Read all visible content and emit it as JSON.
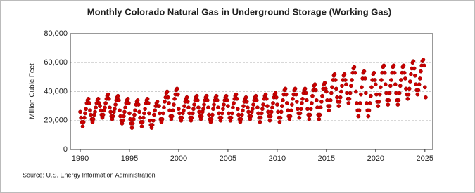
{
  "chart_data": {
    "type": "scatter",
    "title": "Monthly Colorado Natural Gas in Underground Storage (Working Gas)",
    "y_label": "Million Cubic Feet",
    "source": "Source: U.S. Energy Information Administration",
    "grid": true,
    "xlim": [
      1989,
      2025.8
    ],
    "xticks": [
      1990,
      1995,
      2000,
      2005,
      2010,
      2015,
      2020,
      2025
    ],
    "ylim": [
      0,
      80000
    ],
    "yticks": [
      0,
      {
        "value": 20000,
        "label": "20,000"
      },
      {
        "value": 40000,
        "label": "40,000"
      },
      {
        "value": 60000,
        "label": "60,000"
      },
      {
        "value": 80000,
        "label": "80,000"
      }
    ],
    "series": [
      {
        "name": "Working Gas",
        "color": "#cc0000",
        "x": [
          1990,
          1990.08,
          1990.17,
          1990.25,
          1990.33,
          1990.42,
          1990.5,
          1990.58,
          1990.67,
          1990.75,
          1990.83,
          1990.92,
          1991,
          1991.08,
          1991.17,
          1991.25,
          1991.33,
          1991.42,
          1991.5,
          1991.58,
          1991.67,
          1991.75,
          1991.83,
          1991.92,
          1992,
          1992.08,
          1992.17,
          1992.25,
          1992.33,
          1992.42,
          1992.5,
          1992.58,
          1992.67,
          1992.75,
          1992.83,
          1992.92,
          1993,
          1993.08,
          1993.17,
          1993.25,
          1993.33,
          1993.42,
          1993.5,
          1993.58,
          1993.67,
          1993.75,
          1993.83,
          1993.92,
          1994,
          1994.08,
          1994.17,
          1994.25,
          1994.33,
          1994.42,
          1994.5,
          1994.58,
          1994.67,
          1994.75,
          1994.83,
          1994.92,
          1995,
          1995.08,
          1995.17,
          1995.25,
          1995.33,
          1995.42,
          1995.5,
          1995.58,
          1995.67,
          1995.75,
          1995.83,
          1995.92,
          1996,
          1996.08,
          1996.17,
          1996.25,
          1996.33,
          1996.42,
          1996.5,
          1996.58,
          1996.67,
          1996.75,
          1996.83,
          1996.92,
          1997,
          1997.08,
          1997.17,
          1997.25,
          1997.33,
          1997.42,
          1997.5,
          1997.58,
          1997.67,
          1997.75,
          1997.83,
          1997.92,
          1998,
          1998.08,
          1998.17,
          1998.25,
          1998.33,
          1998.42,
          1998.5,
          1998.58,
          1998.67,
          1998.75,
          1998.83,
          1998.92,
          1999,
          1999.08,
          1999.17,
          1999.25,
          1999.33,
          1999.42,
          1999.5,
          1999.58,
          1999.67,
          1999.75,
          1999.83,
          1999.92,
          2000,
          2000.08,
          2000.17,
          2000.25,
          2000.33,
          2000.42,
          2000.5,
          2000.58,
          2000.67,
          2000.75,
          2000.83,
          2000.92,
          2001,
          2001.08,
          2001.17,
          2001.25,
          2001.33,
          2001.42,
          2001.5,
          2001.58,
          2001.67,
          2001.75,
          2001.83,
          2001.92,
          2002,
          2002.08,
          2002.17,
          2002.25,
          2002.33,
          2002.42,
          2002.5,
          2002.58,
          2002.67,
          2002.75,
          2002.83,
          2002.92,
          2003,
          2003.08,
          2003.17,
          2003.25,
          2003.33,
          2003.42,
          2003.5,
          2003.58,
          2003.67,
          2003.75,
          2003.83,
          2003.92,
          2004,
          2004.08,
          2004.17,
          2004.25,
          2004.33,
          2004.42,
          2004.5,
          2004.58,
          2004.67,
          2004.75,
          2004.83,
          2004.92,
          2005,
          2005.08,
          2005.17,
          2005.25,
          2005.33,
          2005.42,
          2005.5,
          2005.58,
          2005.67,
          2005.75,
          2005.83,
          2005.92,
          2006,
          2006.08,
          2006.17,
          2006.25,
          2006.33,
          2006.42,
          2006.5,
          2006.58,
          2006.67,
          2006.75,
          2006.83,
          2006.92,
          2007,
          2007.08,
          2007.17,
          2007.25,
          2007.33,
          2007.42,
          2007.5,
          2007.58,
          2007.67,
          2007.75,
          2007.83,
          2007.92,
          2008,
          2008.08,
          2008.17,
          2008.25,
          2008.33,
          2008.42,
          2008.5,
          2008.58,
          2008.67,
          2008.75,
          2008.83,
          2008.92,
          2009,
          2009.08,
          2009.17,
          2009.25,
          2009.33,
          2009.42,
          2009.5,
          2009.58,
          2009.67,
          2009.75,
          2009.83,
          2009.92,
          2010,
          2010.08,
          2010.17,
          2010.25,
          2010.33,
          2010.42,
          2010.5,
          2010.58,
          2010.67,
          2010.75,
          2010.83,
          2010.92,
          2011,
          2011.08,
          2011.17,
          2011.25,
          2011.33,
          2011.42,
          2011.5,
          2011.58,
          2011.67,
          2011.75,
          2011.83,
          2011.92,
          2012,
          2012.08,
          2012.17,
          2012.25,
          2012.33,
          2012.42,
          2012.5,
          2012.58,
          2012.67,
          2012.75,
          2012.83,
          2012.92,
          2013,
          2013.08,
          2013.17,
          2013.25,
          2013.33,
          2013.42,
          2013.5,
          2013.58,
          2013.67,
          2013.75,
          2013.83,
          2013.92,
          2014,
          2014.08,
          2014.17,
          2014.25,
          2014.33,
          2014.42,
          2014.5,
          2014.58,
          2014.67,
          2014.75,
          2014.83,
          2014.92,
          2015,
          2015.08,
          2015.17,
          2015.25,
          2015.33,
          2015.42,
          2015.5,
          2015.58,
          2015.67,
          2015.75,
          2015.83,
          2015.92,
          2016,
          2016.08,
          2016.17,
          2016.25,
          2016.33,
          2016.42,
          2016.5,
          2016.58,
          2016.67,
          2016.75,
          2016.83,
          2016.92,
          2017,
          2017.08,
          2017.17,
          2017.25,
          2017.33,
          2017.42,
          2017.5,
          2017.58,
          2017.67,
          2017.75,
          2017.83,
          2017.92,
          2018,
          2018.08,
          2018.17,
          2018.25,
          2018.33,
          2018.42,
          2018.5,
          2018.58,
          2018.67,
          2018.75,
          2018.83,
          2018.92,
          2019,
          2019.08,
          2019.17,
          2019.25,
          2019.33,
          2019.42,
          2019.5,
          2019.58,
          2019.67,
          2019.75,
          2019.83,
          2019.92,
          2020,
          2020.08,
          2020.17,
          2020.25,
          2020.33,
          2020.42,
          2020.5,
          2020.58,
          2020.67,
          2020.75,
          2020.83,
          2020.92,
          2021,
          2021.08,
          2021.17,
          2021.25,
          2021.33,
          2021.42,
          2021.5,
          2021.58,
          2021.67,
          2021.75,
          2021.83,
          2021.92,
          2022,
          2022.08,
          2022.17,
          2022.25,
          2022.33,
          2022.42,
          2022.5,
          2022.58,
          2022.67,
          2022.75,
          2022.83,
          2022.92,
          2023,
          2023.08,
          2023.17,
          2023.25,
          2023.33,
          2023.42,
          2023.5,
          2023.58,
          2023.67,
          2023.75,
          2023.83,
          2023.92,
          2024,
          2024.08,
          2024.17,
          2024.25,
          2024.33,
          2024.42,
          2024.5,
          2024.58,
          2024.67,
          2024.75,
          2024.83,
          2024.92,
          2025,
          2025.08
        ],
        "values": [
          26000,
          22000,
          19000,
          16000,
          19000,
          22000,
          25000,
          28000,
          32000,
          34000,
          35000,
          32000,
          27000,
          24000,
          21000,
          19000,
          21000,
          24000,
          26000,
          29000,
          32000,
          34000,
          35000,
          32000,
          30000,
          27000,
          24000,
          22000,
          24000,
          27000,
          29000,
          32000,
          35000,
          37000,
          38000,
          35000,
          29000,
          26000,
          23000,
          21000,
          23000,
          26000,
          28000,
          31000,
          34000,
          36000,
          37000,
          34000,
          27000,
          23000,
          20000,
          18000,
          20000,
          23000,
          26000,
          29000,
          32000,
          34000,
          35000,
          32000,
          25000,
          21000,
          18000,
          15000,
          18000,
          21000,
          24000,
          27000,
          31000,
          33000,
          34000,
          31000,
          26000,
          22000,
          19000,
          16000,
          19000,
          22000,
          25000,
          28000,
          32000,
          34000,
          35000,
          32000,
          25000,
          20000,
          17000,
          15000,
          17000,
          20000,
          24000,
          27000,
          30000,
          32000,
          33000,
          30000,
          30000,
          25000,
          21000,
          19000,
          21000,
          25000,
          29000,
          33000,
          36000,
          39000,
          40000,
          36000,
          32000,
          27000,
          23000,
          21000,
          23000,
          27000,
          31000,
          35000,
          38000,
          41000,
          42000,
          38000,
          28000,
          25000,
          22000,
          20000,
          22000,
          25000,
          27000,
          30000,
          33000,
          35000,
          36000,
          33000,
          29000,
          25000,
          22000,
          20000,
          22000,
          25000,
          28000,
          31000,
          34000,
          36000,
          37000,
          34000,
          29000,
          26000,
          23000,
          21000,
          23000,
          26000,
          28000,
          31000,
          34000,
          36000,
          37000,
          34000,
          29000,
          24000,
          21000,
          19000,
          21000,
          24000,
          28000,
          31000,
          34000,
          36000,
          37000,
          34000,
          29000,
          25000,
          22000,
          20000,
          22000,
          25000,
          28000,
          31000,
          34000,
          36000,
          37000,
          34000,
          30000,
          25000,
          22000,
          20000,
          22000,
          25000,
          29000,
          32000,
          35000,
          37000,
          38000,
          35000,
          28000,
          24000,
          21000,
          19000,
          21000,
          24000,
          27000,
          30000,
          33000,
          35000,
          36000,
          33000,
          29000,
          26000,
          23000,
          21000,
          23000,
          26000,
          28000,
          31000,
          34000,
          36000,
          37000,
          34000,
          29000,
          25000,
          22000,
          19000,
          22000,
          25000,
          28000,
          31000,
          35000,
          37000,
          38000,
          35000,
          30000,
          26000,
          23000,
          20000,
          23000,
          26000,
          29000,
          32000,
          36000,
          38000,
          39000,
          36000,
          31000,
          26000,
          22000,
          19000,
          22000,
          26000,
          30000,
          34000,
          38000,
          41000,
          42000,
          38000,
          32000,
          27000,
          23000,
          21000,
          23000,
          27000,
          31000,
          35000,
          38000,
          41000,
          42000,
          38000,
          33000,
          28000,
          25000,
          22000,
          25000,
          28000,
          32000,
          35000,
          39000,
          41000,
          42000,
          39000,
          34000,
          28000,
          24000,
          21000,
          24000,
          28000,
          32000,
          37000,
          41000,
          44000,
          45000,
          41000,
          34000,
          29000,
          24000,
          21000,
          24000,
          29000,
          33000,
          37000,
          42000,
          45000,
          46000,
          42000,
          40000,
          34000,
          30000,
          27000,
          30000,
          34000,
          39000,
          43000,
          48000,
          51000,
          52000,
          48000,
          42000,
          36000,
          33000,
          30000,
          33000,
          36000,
          40000,
          44000,
          48000,
          51000,
          52000,
          48000,
          45000,
          39000,
          35000,
          32000,
          35000,
          39000,
          44000,
          48000,
          53000,
          56000,
          57000,
          53000,
          40000,
          32000,
          27000,
          23000,
          27000,
          32000,
          38000,
          43000,
          49000,
          53000,
          54000,
          49000,
          39000,
          32000,
          27000,
          23000,
          27000,
          32000,
          37000,
          43000,
          48000,
          52000,
          53000,
          48000,
          45000,
          38000,
          33000,
          30000,
          33000,
          38000,
          43000,
          48000,
          53000,
          57000,
          58000,
          53000,
          45000,
          39000,
          34000,
          31000,
          34000,
          39000,
          44000,
          48000,
          53000,
          57000,
          58000,
          53000,
          45000,
          39000,
          34000,
          31000,
          34000,
          39000,
          44000,
          48000,
          53000,
          57000,
          58000,
          53000,
          49000,
          42000,
          38000,
          35000,
          38000,
          42000,
          47000,
          52000,
          56000,
          60000,
          61000,
          56000,
          51000,
          45000,
          41000,
          38000,
          41000,
          45000,
          49000,
          54000,
          58000,
          61000,
          62000,
          58000,
          43000,
          36000
        ]
      }
    ]
  }
}
